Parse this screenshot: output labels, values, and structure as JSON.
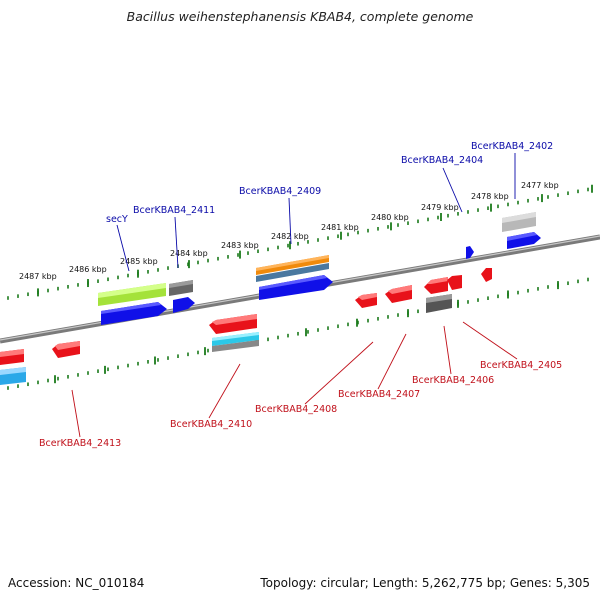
{
  "title": "Bacillus weihenstephanensis KBAB4, complete genome",
  "footer": {
    "accession": "Accession: NC_010184",
    "summary": "Topology: circular; Length: 5,262,775 bp; Genes: 5,305"
  },
  "scale_labels": [
    "2487 kbp",
    "2486 kbp",
    "2485 kbp",
    "2484 kbp",
    "2483 kbp",
    "2482 kbp",
    "2481 kbp",
    "2480 kbp",
    "2479 kbp",
    "2478 kbp",
    "2477 kbp"
  ],
  "gene_labels_forward": [
    "secY",
    "BcerKBAB4_2411",
    "BcerKBAB4_2409",
    "BcerKBAB4_2404",
    "BcerKBAB4_2402"
  ],
  "gene_labels_reverse": [
    "BcerKBAB4_2413",
    "BcerKBAB4_2410",
    "BcerKBAB4_2408",
    "BcerKBAB4_2407",
    "BcerKBAB4_2406",
    "BcerKBAB4_2405"
  ],
  "colors": {
    "forward_label": "#0a0aa8",
    "reverse_label": "#c0101a",
    "gene_blue": "#1010e8",
    "gene_red": "#e8121a",
    "gene_gray": "#777777",
    "gene_lightgray": "#b8b8b8",
    "gene_green": "#a4e23a",
    "gene_orange": "#f08a0c",
    "gene_cyan": "#2cc8e8",
    "tick_green": "#1a7a1a",
    "backbone": "#888888"
  }
}
